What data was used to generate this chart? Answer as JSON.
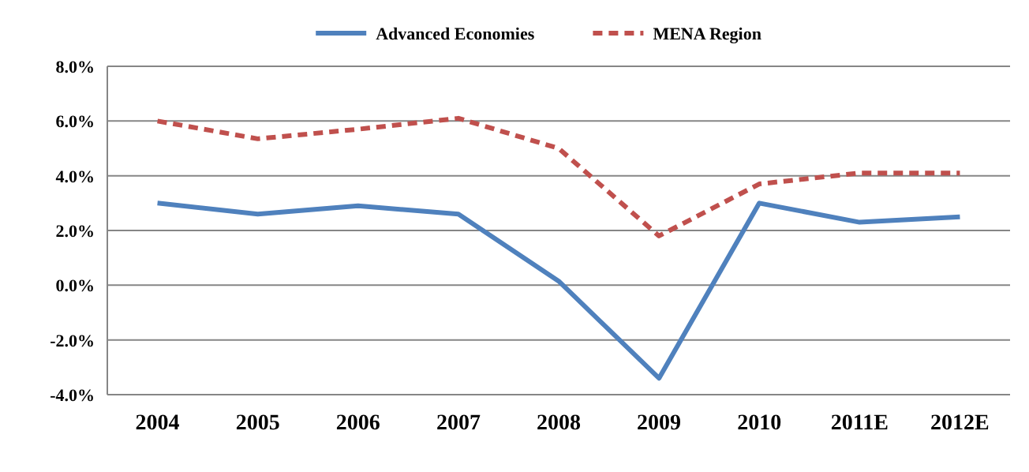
{
  "chart_data": {
    "type": "line",
    "categories": [
      "2004",
      "2005",
      "2006",
      "2007",
      "2008",
      "2009",
      "2010",
      "2011E",
      "2012E"
    ],
    "series": [
      {
        "name": "Advanced Economies",
        "color": "#4f81bd",
        "line_style": "solid",
        "values": [
          3.0,
          2.6,
          2.9,
          2.6,
          0.15,
          -3.4,
          3.0,
          2.3,
          2.5
        ]
      },
      {
        "name": "MENA Region",
        "color": "#c0504d",
        "line_style": "dashed",
        "values": [
          6.0,
          5.35,
          5.7,
          6.1,
          5.0,
          1.8,
          3.7,
          4.1,
          4.1
        ]
      }
    ],
    "ylim": [
      -4,
      8
    ],
    "yticks": [
      {
        "value": -4,
        "label": "-4.0%"
      },
      {
        "value": -2,
        "label": "-2.0%"
      },
      {
        "value": 0,
        "label": "0.0%"
      },
      {
        "value": 2,
        "label": "2.0%"
      },
      {
        "value": 4,
        "label": "4.0%"
      },
      {
        "value": 6,
        "label": "6.0%"
      },
      {
        "value": 8,
        "label": "8.0%"
      }
    ],
    "grid": "y",
    "legend": "top",
    "marker": "none"
  }
}
